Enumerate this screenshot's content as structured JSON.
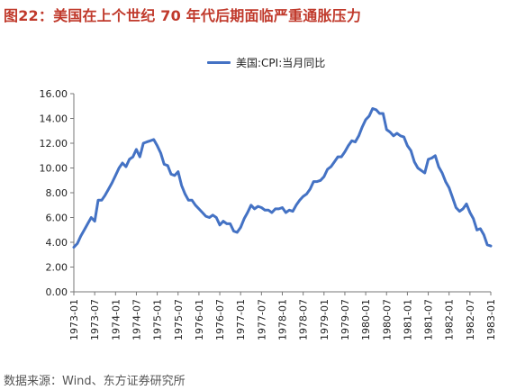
{
  "header": {
    "title": "图22：美国在上个世纪 70 年代后期面临严重通胀压力"
  },
  "footer": {
    "source": "数据来源：Wind、东方证券研究所"
  },
  "colors": {
    "line": "#4472c4",
    "axis": "#777777",
    "title": "#c0392b"
  },
  "chart_data": {
    "type": "line",
    "title": "",
    "xlabel": "",
    "ylabel": "",
    "legend_position": "top-center",
    "grid": false,
    "ylim": [
      0,
      16
    ],
    "y_ticks": [
      "0.00",
      "2.00",
      "4.00",
      "6.00",
      "8.00",
      "10.00",
      "12.00",
      "14.00",
      "16.00"
    ],
    "x_tick_labels": [
      "1973-01",
      "1973-07",
      "1974-01",
      "1974-07",
      "1975-01",
      "1975-07",
      "1976-01",
      "1976-07",
      "1977-01",
      "1977-07",
      "1978-01",
      "1978-07",
      "1979-01",
      "1979-07",
      "1980-01",
      "1980-07",
      "1981-01",
      "1981-07",
      "1982-01",
      "1982-07",
      "1983-01"
    ],
    "series": [
      {
        "name": "美国:CPI:当月同比",
        "start": "1973-01",
        "frequency": "monthly",
        "values": [
          3.6,
          3.9,
          4.5,
          5.0,
          5.5,
          6.0,
          5.7,
          7.4,
          7.4,
          7.8,
          8.3,
          8.8,
          9.4,
          10.0,
          10.4,
          10.1,
          10.7,
          10.9,
          11.5,
          10.9,
          12.0,
          12.1,
          12.2,
          12.3,
          11.8,
          11.2,
          10.3,
          10.2,
          9.5,
          9.4,
          9.7,
          8.6,
          7.9,
          7.4,
          7.4,
          7.0,
          6.7,
          6.4,
          6.1,
          6.0,
          6.2,
          6.0,
          5.4,
          5.7,
          5.5,
          5.5,
          4.9,
          4.8,
          5.2,
          5.9,
          6.4,
          7.0,
          6.7,
          6.9,
          6.8,
          6.6,
          6.6,
          6.4,
          6.7,
          6.7,
          6.8,
          6.4,
          6.6,
          6.5,
          7.0,
          7.4,
          7.7,
          7.9,
          8.3,
          8.9,
          8.9,
          9.0,
          9.3,
          9.9,
          10.1,
          10.5,
          10.9,
          10.9,
          11.3,
          11.8,
          12.2,
          12.1,
          12.6,
          13.3,
          13.9,
          14.2,
          14.8,
          14.7,
          14.4,
          14.4,
          13.1,
          12.9,
          12.6,
          12.8,
          12.6,
          12.5,
          11.8,
          11.4,
          10.5,
          10.0,
          9.8,
          9.6,
          10.7,
          10.8,
          11.0,
          10.1,
          9.6,
          8.9,
          8.4,
          7.6,
          6.8,
          6.5,
          6.7,
          7.1,
          6.4,
          5.9,
          5.0,
          5.1,
          4.6,
          3.8,
          3.7
        ]
      }
    ]
  }
}
